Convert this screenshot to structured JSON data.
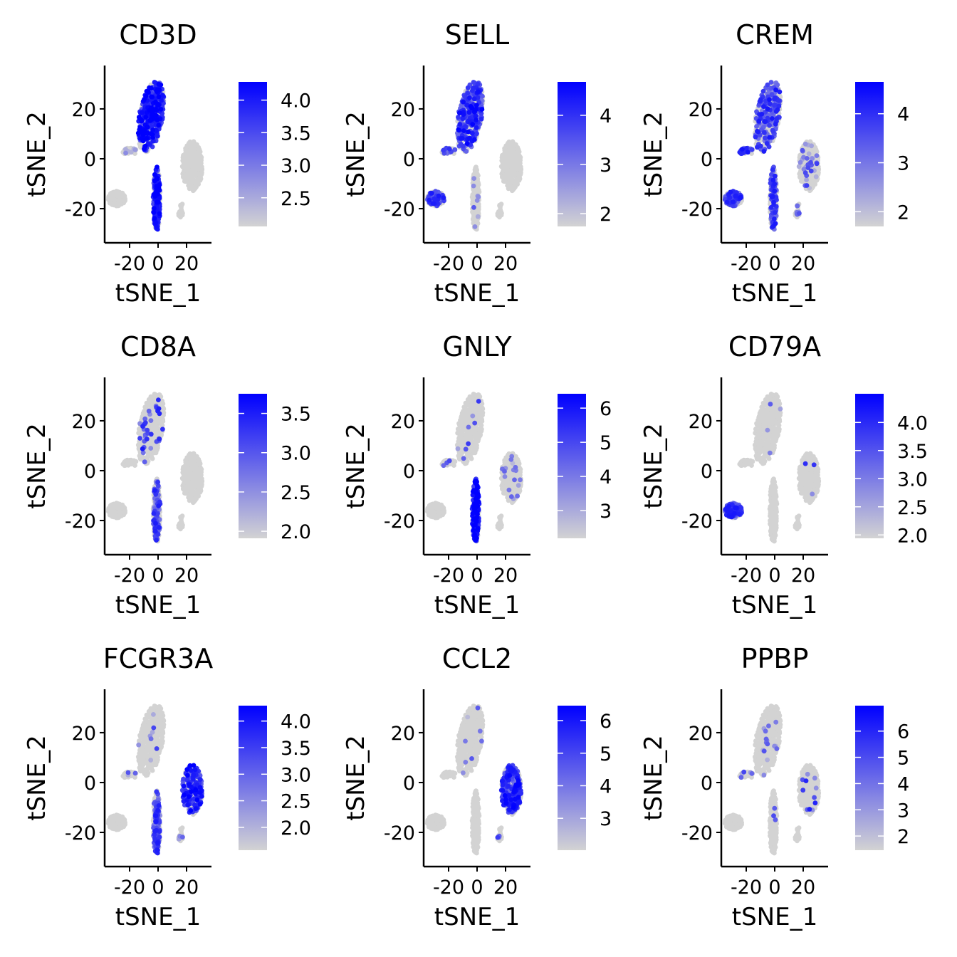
{
  "chart_data": [
    {
      "type": "scatter",
      "title": "CD3D",
      "legend_range": [
        2.06,
        4.28
      ],
      "legend_ticks": [
        "2.5",
        "3.0",
        "3.5",
        "4.0"
      ],
      "expression": {
        "A": [
          0.6,
          0.8
        ],
        "B": [
          0.2,
          0.3
        ],
        "C": [
          0.6,
          0.8
        ],
        "D": [
          0,
          0
        ],
        "E": [
          0,
          0
        ],
        "F": [
          0,
          0
        ]
      }
    },
    {
      "type": "scatter",
      "title": "SELL",
      "legend_range": [
        1.74,
        4.68
      ],
      "legend_ticks": [
        "2",
        "3",
        "4"
      ],
      "expression": {
        "A": [
          0.55,
          0.7
        ],
        "B": [
          0.3,
          0.5
        ],
        "C": [
          0.05,
          0.4
        ],
        "D": [
          0.45,
          0.6
        ],
        "E": [
          0,
          0
        ],
        "F": [
          0,
          0
        ]
      }
    },
    {
      "type": "scatter",
      "title": "CREM",
      "legend_range": [
        1.7,
        4.65
      ],
      "legend_ticks": [
        "2",
        "3",
        "4"
      ],
      "expression": {
        "A": [
          0.4,
          0.6
        ],
        "B": [
          0.5,
          0.7
        ],
        "C": [
          0.35,
          0.6
        ],
        "D": [
          0.45,
          0.6
        ],
        "E": [
          0.12,
          0.4
        ],
        "F": [
          0.2,
          0.4
        ]
      }
    },
    {
      "type": "scatter",
      "title": "CD8A",
      "legend_range": [
        1.91,
        3.75
      ],
      "legend_ticks": [
        "2.0",
        "2.5",
        "3.0",
        "3.5"
      ],
      "expression": {
        "A": [
          0.08,
          0.6
        ],
        "B": [
          0,
          0
        ],
        "C": [
          0.45,
          0.6
        ],
        "D": [
          0,
          0
        ],
        "E": [
          0,
          0
        ],
        "F": [
          0,
          0
        ]
      }
    },
    {
      "type": "scatter",
      "title": "GNLY",
      "legend_range": [
        2.19,
        6.42
      ],
      "legend_ticks": [
        "3",
        "4",
        "5",
        "6"
      ],
      "expression": {
        "A": [
          0.03,
          0.5
        ],
        "B": [
          0.05,
          0.4
        ],
        "C": [
          0.75,
          0.85
        ],
        "D": [
          0,
          0
        ],
        "E": [
          0.05,
          0.4
        ],
        "F": [
          0,
          0
        ]
      }
    },
    {
      "type": "scatter",
      "title": "CD79A",
      "legend_range": [
        1.94,
        4.51
      ],
      "legend_ticks": [
        "2.0",
        "2.5",
        "3.0",
        "3.5",
        "4.0"
      ],
      "expression": {
        "A": [
          0.01,
          0.5
        ],
        "B": [
          0,
          0
        ],
        "C": [
          0,
          0
        ],
        "D": [
          0.85,
          0.6
        ],
        "E": [
          0.01,
          0.5
        ],
        "F": [
          0,
          0
        ]
      }
    },
    {
      "type": "scatter",
      "title": "FCGR3A",
      "legend_range": [
        1.57,
        4.29
      ],
      "legend_ticks": [
        "2.0",
        "2.5",
        "3.0",
        "3.5",
        "4.0"
      ],
      "expression": {
        "A": [
          0.02,
          0.4
        ],
        "B": [
          0.05,
          0.4
        ],
        "C": [
          0.45,
          0.6
        ],
        "D": [
          0,
          0
        ],
        "E": [
          0.45,
          0.75
        ],
        "F": [
          0.1,
          0.5
        ]
      }
    },
    {
      "type": "scatter",
      "title": "CCL2",
      "legend_range": [
        2.02,
        6.46
      ],
      "legend_ticks": [
        "3",
        "4",
        "5",
        "6"
      ],
      "expression": {
        "A": [
          0.02,
          0.3
        ],
        "B": [
          0,
          0
        ],
        "C": [
          0,
          0
        ],
        "D": [
          0,
          0
        ],
        "E": [
          0.6,
          0.7
        ],
        "F": [
          0.1,
          0.5
        ]
      }
    },
    {
      "type": "scatter",
      "title": "PPBP",
      "legend_range": [
        1.46,
        6.97
      ],
      "legend_ticks": [
        "2",
        "3",
        "4",
        "5",
        "6"
      ],
      "expression": {
        "A": [
          0.03,
          0.4
        ],
        "B": [
          0.05,
          0.4
        ],
        "C": [
          0.02,
          0.4
        ],
        "D": [
          0,
          0
        ],
        "E": [
          0.04,
          0.6
        ],
        "F": [
          0,
          0
        ]
      }
    }
  ],
  "shared": {
    "xlabel": "tSNE_1",
    "ylabel": "tSNE_2",
    "xlim": [
      -37.5,
      37.5
    ],
    "ylim": [
      -33.7,
      37.4
    ],
    "xticks": [
      -20,
      0,
      20
    ],
    "xtick_labels": [
      "-20",
      "0",
      "20"
    ],
    "yticks": [
      -20,
      0,
      20
    ],
    "ytick_labels": [
      "-20",
      "0",
      "20"
    ],
    "grid": false,
    "legend_placement": "right",
    "colors": {
      "low": "#d3d3d3",
      "high": "#0000ff"
    },
    "clusters": [
      {
        "id": "A",
        "cx": -5,
        "cy": 17,
        "rx": 8,
        "ry": 15,
        "angle": -20,
        "n": 420
      },
      {
        "id": "B",
        "cx": -20,
        "cy": 3,
        "rx": 5,
        "ry": 1.5,
        "angle": 0,
        "n": 30
      },
      {
        "id": "C",
        "cx": -1,
        "cy": -16,
        "rx": 2.5,
        "ry": 13,
        "angle": 0,
        "n": 200
      },
      {
        "id": "D",
        "cx": -29,
        "cy": -16,
        "rx": 6,
        "ry": 3,
        "angle": 0,
        "n": 140
      },
      {
        "id": "E",
        "cx": 24,
        "cy": -3,
        "rx": 7,
        "ry": 10,
        "angle": 0,
        "n": 330
      },
      {
        "id": "F",
        "cx": 16,
        "cy": -21,
        "rx": 1.6,
        "ry": 3.5,
        "angle": -15,
        "n": 25
      }
    ]
  }
}
